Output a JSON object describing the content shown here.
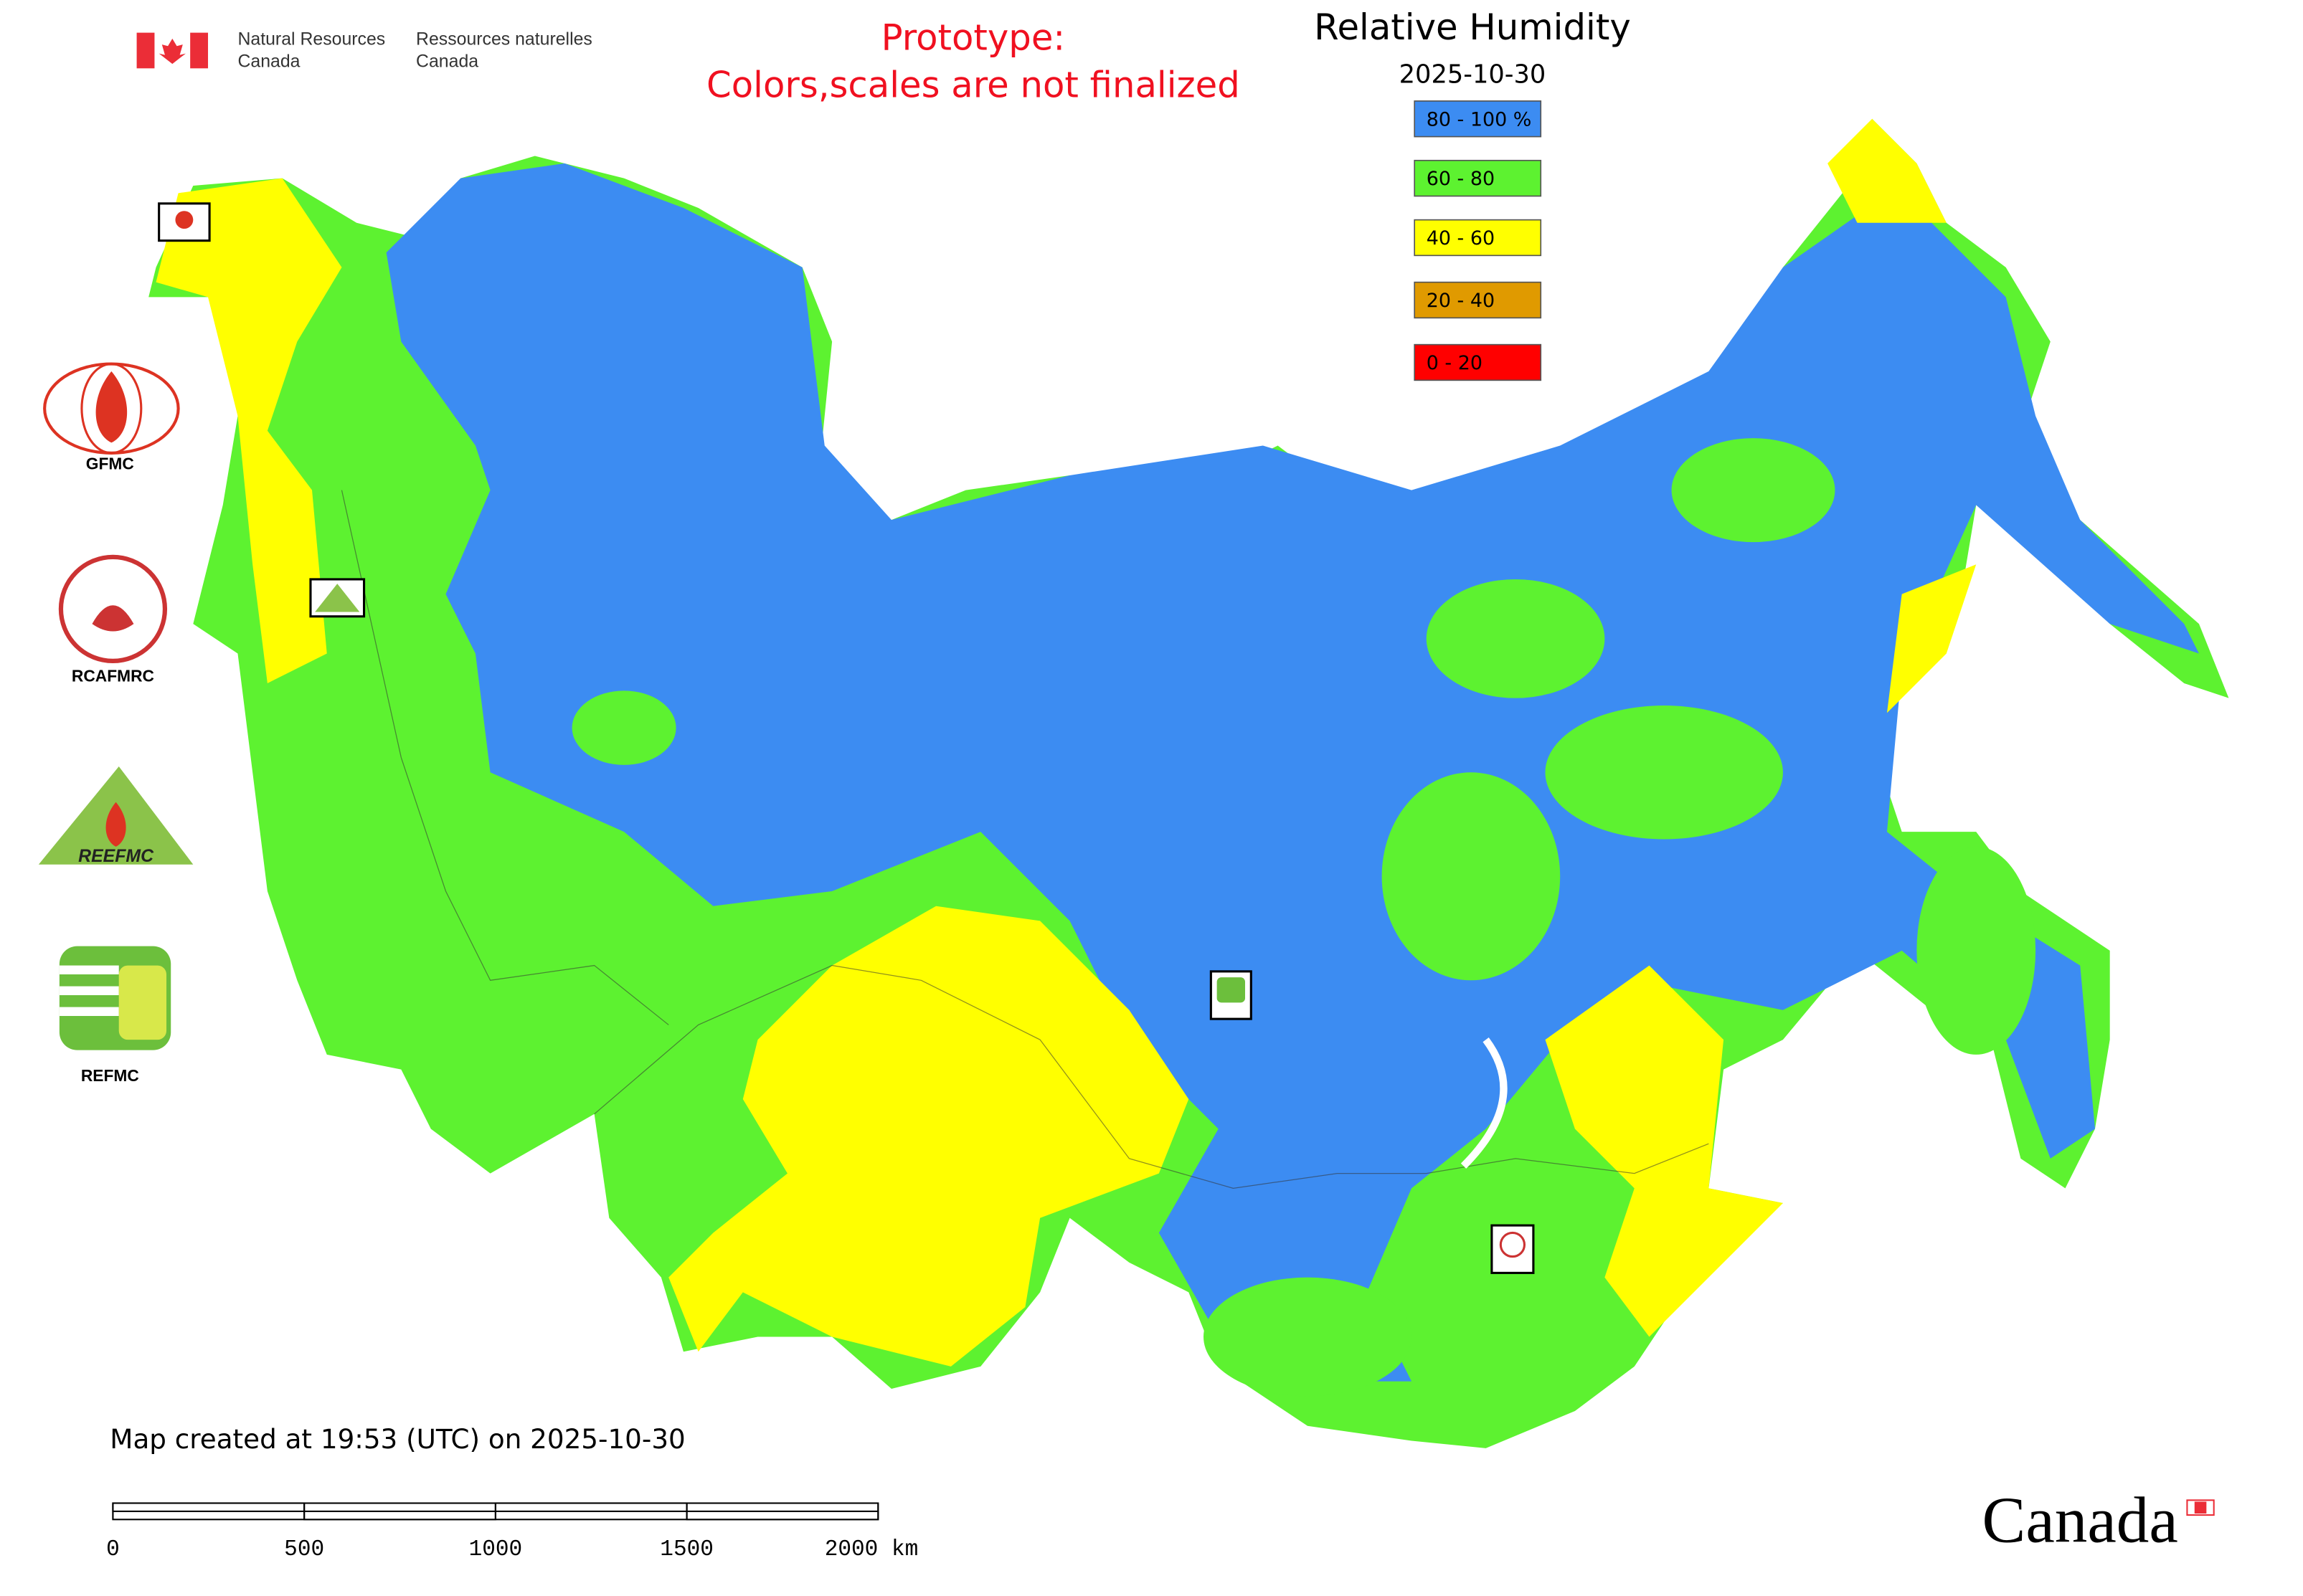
{
  "header": {
    "agency_en": [
      "Natural Resources",
      "Canada"
    ],
    "agency_fr": [
      "Ressources naturelles",
      "Canada"
    ]
  },
  "notice": [
    "Prototype:",
    "Colors,scales are not finalized"
  ],
  "legend": {
    "title": "Relative Humidity",
    "date": "2025-10-30",
    "items": [
      {
        "label": "80 - 100 %",
        "color": "#3c8cf2"
      },
      {
        "label": "60 - 80",
        "color": "#5df230"
      },
      {
        "label": "40 - 60",
        "color": "#ffff00"
      },
      {
        "label": "20 - 40",
        "color": "#e09a00"
      },
      {
        "label": "0 - 20",
        "color": "#ff0000"
      }
    ]
  },
  "logos": [
    "GFMC",
    "RCAFMRC",
    "REEFMC",
    "REFMC"
  ],
  "footer": "Map created at 19:53 (UTC) on 2025-10-30",
  "scale_bar": {
    "ticks": [
      0,
      500,
      1000,
      1500,
      2000
    ],
    "unit": "km"
  },
  "wordmark": "Canada"
}
